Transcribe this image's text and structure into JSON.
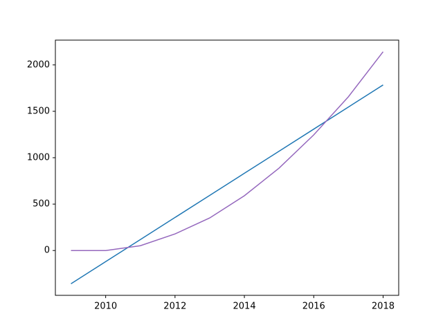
{
  "chart_data": {
    "type": "line",
    "x": [
      2009,
      2010,
      2011,
      2012,
      2013,
      2014,
      2015,
      2016,
      2017,
      2018
    ],
    "series": [
      {
        "color": "#1f77b4",
        "values": [
          -358,
          -120,
          118,
          356,
          594,
          832,
          1070,
          1308,
          1546,
          1784
        ]
      },
      {
        "color": "#9467bd",
        "values": [
          0,
          0,
          52,
          179,
          351,
          590,
          888,
          1246,
          1657,
          2142
        ]
      }
    ],
    "xlim": [
      2008.55,
      2018.45
    ],
    "xticks": [
      2010,
      2012,
      2014,
      2016,
      2018
    ],
    "ylim": [
      -483,
      2267
    ],
    "yticks": [
      0,
      500,
      1000,
      1500,
      2000
    ],
    "grid": false
  }
}
